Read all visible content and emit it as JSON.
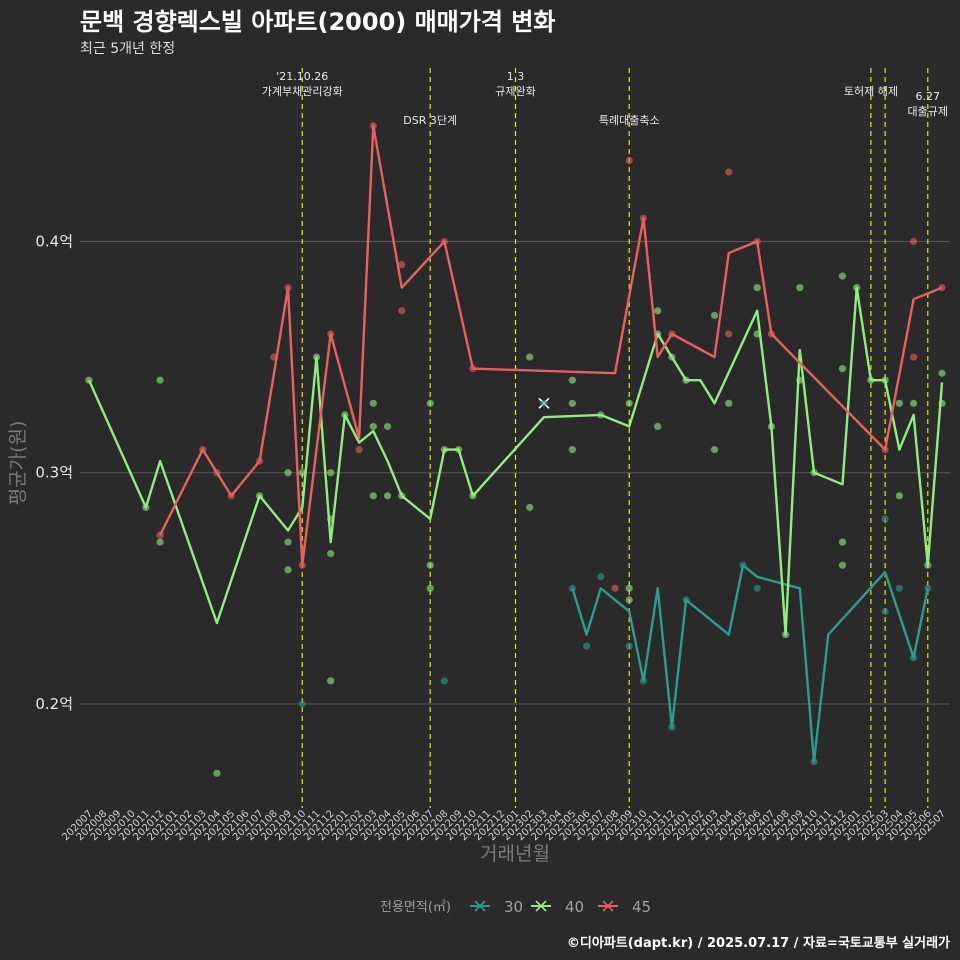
{
  "chart_data": {
    "type": "line",
    "title": "문백 경향렉스빌 아파트(2000) 매매가격 변화",
    "subtitle": "최근 5개년 한정",
    "xlabel": "거래년월",
    "ylabel": "평균가(원)",
    "caption": "©디아파트(dapt.kr) / 2025.07.17 / 자료=국토교통부 실거래가",
    "legend_title": "전용면적(㎡)",
    "legend_position": "bottom",
    "ylim": [
      0.155,
      0.475
    ],
    "y_ticks": [
      0.2,
      0.3,
      0.4
    ],
    "y_tick_labels": [
      "0.2억",
      "0.3억",
      "0.4억"
    ],
    "grid": true,
    "categories": [
      "202007",
      "202008",
      "202009",
      "202010",
      "202011",
      "202012",
      "202101",
      "202102",
      "202103",
      "202104",
      "202105",
      "202106",
      "202107",
      "202108",
      "202109",
      "202110",
      "202111",
      "202112",
      "202201",
      "202202",
      "202203",
      "202204",
      "202205",
      "202206",
      "202207",
      "202208",
      "202209",
      "202210",
      "202211",
      "202212",
      "202301",
      "202302",
      "202303",
      "202304",
      "202305",
      "202306",
      "202307",
      "202308",
      "202309",
      "202310",
      "202311",
      "202312",
      "202401",
      "202402",
      "202403",
      "202404",
      "202405",
      "202406",
      "202407",
      "202408",
      "202409",
      "202410",
      "202411",
      "202412",
      "202501",
      "202502",
      "202503",
      "202504",
      "202505",
      "202506",
      "202507"
    ],
    "events": [
      {
        "x": "202110",
        "label": [
          "'21.10.26",
          "가계부채관리강화"
        ],
        "level": 0
      },
      {
        "x": "202207",
        "label": [
          "DSR 3단계"
        ],
        "level": 1
      },
      {
        "x": "202301",
        "label": [
          "1.3",
          "규제완화"
        ],
        "level": 0
      },
      {
        "x": "202309",
        "label": [
          "특례대출축소"
        ],
        "level": 1
      },
      {
        "x": "202502",
        "label": [
          "토허제 해제"
        ],
        "level": 0
      },
      {
        "x": "202503",
        "label": [],
        "level": 0
      },
      {
        "x": "202506",
        "label": [
          "6.27",
          "대출규제"
        ],
        "level": 2
      }
    ],
    "series": [
      {
        "name": "30",
        "color": "#2a9d8f",
        "line": [
          [
            "202305",
            0.25
          ],
          [
            "202306",
            0.23
          ],
          [
            "202307",
            0.25
          ],
          [
            "202309",
            0.24
          ],
          [
            "202310",
            0.21
          ],
          [
            "202311",
            0.25
          ],
          [
            "202312",
            0.19
          ],
          [
            "202401",
            0.245
          ],
          [
            "202404",
            0.23
          ],
          [
            "202405",
            0.26
          ],
          [
            "202406",
            0.255
          ],
          [
            "202409",
            0.25
          ],
          [
            "202410",
            0.175
          ],
          [
            "202411",
            0.23
          ],
          [
            "202503",
            0.257
          ],
          [
            "202505",
            0.22
          ],
          [
            "202506",
            0.25
          ]
        ],
        "points": [
          [
            "202110",
            0.2
          ],
          [
            "202208",
            0.21
          ],
          [
            "202305",
            0.25
          ],
          [
            "202306",
            0.225
          ],
          [
            "202307",
            0.255
          ],
          [
            "202309",
            0.225
          ],
          [
            "202310",
            0.21
          ],
          [
            "202312",
            0.19
          ],
          [
            "202401",
            0.245
          ],
          [
            "202405",
            0.26
          ],
          [
            "202406",
            0.25
          ],
          [
            "202410",
            0.175
          ],
          [
            "202503",
            0.28
          ],
          [
            "202503",
            0.24
          ],
          [
            "202504",
            0.25
          ],
          [
            "202505",
            0.22
          ],
          [
            "202506",
            0.25
          ]
        ]
      },
      {
        "name": "40",
        "color": "#90ee7e",
        "line": [
          [
            "202007",
            0.34
          ],
          [
            "202011",
            0.285
          ],
          [
            "202012",
            0.305
          ],
          [
            "202104",
            0.235
          ],
          [
            "202107",
            0.29
          ],
          [
            "202109",
            0.275
          ],
          [
            "202110",
            0.285
          ],
          [
            "202111",
            0.35
          ],
          [
            "202112",
            0.27
          ],
          [
            "202201",
            0.325
          ],
          [
            "202202",
            0.313
          ],
          [
            "202203",
            0.318
          ],
          [
            "202204",
            0.305
          ],
          [
            "202205",
            0.29
          ],
          [
            "202207",
            0.28
          ],
          [
            "202208",
            0.31
          ],
          [
            "202209",
            0.31
          ],
          [
            "202210",
            0.29
          ],
          [
            "202303",
            0.324
          ],
          [
            "202307",
            0.325
          ],
          [
            "202309",
            0.32
          ],
          [
            "202310",
            0.34
          ],
          [
            "202311",
            0.36
          ],
          [
            "202312",
            0.35
          ],
          [
            "202401",
            0.34
          ],
          [
            "202402",
            0.34
          ],
          [
            "202403",
            0.33
          ],
          [
            "202406",
            0.37
          ],
          [
            "202407",
            0.32
          ],
          [
            "202408",
            0.23
          ],
          [
            "202409",
            0.353
          ],
          [
            "202410",
            0.3
          ],
          [
            "202412",
            0.295
          ],
          [
            "202501",
            0.38
          ],
          [
            "202502",
            0.34
          ],
          [
            "202503",
            0.34
          ],
          [
            "202504",
            0.31
          ],
          [
            "202505",
            0.325
          ],
          [
            "202506",
            0.26
          ],
          [
            "202507",
            0.339
          ]
        ],
        "points": [
          [
            "202007",
            0.34
          ],
          [
            "202011",
            0.285
          ],
          [
            "202012",
            0.34
          ],
          [
            "202012",
            0.27
          ],
          [
            "202104",
            0.17
          ],
          [
            "202107",
            0.29
          ],
          [
            "202109",
            0.3
          ],
          [
            "202109",
            0.27
          ],
          [
            "202109",
            0.258
          ],
          [
            "202110",
            0.3
          ],
          [
            "202111",
            0.35
          ],
          [
            "202112",
            0.3
          ],
          [
            "202112",
            0.28
          ],
          [
            "202112",
            0.265
          ],
          [
            "202112",
            0.21
          ],
          [
            "202201",
            0.325
          ],
          [
            "202203",
            0.33
          ],
          [
            "202203",
            0.32
          ],
          [
            "202203",
            0.29
          ],
          [
            "202204",
            0.32
          ],
          [
            "202204",
            0.29
          ],
          [
            "202205",
            0.29
          ],
          [
            "202207",
            0.33
          ],
          [
            "202207",
            0.26
          ],
          [
            "202207",
            0.25
          ],
          [
            "202208",
            0.31
          ],
          [
            "202209",
            0.31
          ],
          [
            "202210",
            0.29
          ],
          [
            "202302",
            0.35
          ],
          [
            "202302",
            0.285
          ],
          [
            "202305",
            0.34
          ],
          [
            "202305",
            0.33
          ],
          [
            "202305",
            0.31
          ],
          [
            "202307",
            0.325
          ],
          [
            "202309",
            0.33
          ],
          [
            "202309",
            0.25
          ],
          [
            "202309",
            0.245
          ],
          [
            "202311",
            0.36
          ],
          [
            "202311",
            0.37
          ],
          [
            "202311",
            0.32
          ],
          [
            "202312",
            0.35
          ],
          [
            "202401",
            0.34
          ],
          [
            "202403",
            0.31
          ],
          [
            "202403",
            0.368
          ],
          [
            "202404",
            0.33
          ],
          [
            "202406",
            0.38
          ],
          [
            "202406",
            0.36
          ],
          [
            "202407",
            0.32
          ],
          [
            "202408",
            0.23
          ],
          [
            "202409",
            0.38
          ],
          [
            "202409",
            0.34
          ],
          [
            "202410",
            0.3
          ],
          [
            "202412",
            0.385
          ],
          [
            "202412",
            0.345
          ],
          [
            "202412",
            0.27
          ],
          [
            "202412",
            0.26
          ],
          [
            "202501",
            0.38
          ],
          [
            "202502",
            0.34
          ],
          [
            "202503",
            0.34
          ],
          [
            "202504",
            0.33
          ],
          [
            "202504",
            0.29
          ],
          [
            "202505",
            0.33
          ],
          [
            "202506",
            0.26
          ],
          [
            "202507",
            0.343
          ],
          [
            "202507",
            0.33
          ]
        ]
      },
      {
        "name": "45",
        "color": "#e8615c",
        "line": [
          [
            "202012",
            0.273
          ],
          [
            "202103",
            0.31
          ],
          [
            "202105",
            0.29
          ],
          [
            "202107",
            0.305
          ],
          [
            "202109",
            0.38
          ],
          [
            "202110",
            0.26
          ],
          [
            "202112",
            0.36
          ],
          [
            "202202",
            0.315
          ],
          [
            "202203",
            0.45
          ],
          [
            "202205",
            0.38
          ],
          [
            "202208",
            0.4
          ],
          [
            "202210",
            0.345
          ],
          [
            "202308",
            0.343
          ],
          [
            "202310",
            0.41
          ],
          [
            "202311",
            0.35
          ],
          [
            "202312",
            0.36
          ],
          [
            "202403",
            0.35
          ],
          [
            "202404",
            0.395
          ],
          [
            "202406",
            0.4
          ],
          [
            "202407",
            0.36
          ],
          [
            "202503",
            0.31
          ],
          [
            "202505",
            0.375
          ],
          [
            "202507",
            0.38
          ]
        ],
        "points": [
          [
            "202012",
            0.273
          ],
          [
            "202103",
            0.31
          ],
          [
            "202104",
            0.3
          ],
          [
            "202105",
            0.29
          ],
          [
            "202107",
            0.305
          ],
          [
            "202108",
            0.35
          ],
          [
            "202109",
            0.38
          ],
          [
            "202110",
            0.26
          ],
          [
            "202112",
            0.36
          ],
          [
            "202202",
            0.31
          ],
          [
            "202203",
            0.45
          ],
          [
            "202205",
            0.39
          ],
          [
            "202205",
            0.37
          ],
          [
            "202208",
            0.4
          ],
          [
            "202210",
            0.345
          ],
          [
            "202308",
            0.25
          ],
          [
            "202309",
            0.435
          ],
          [
            "202310",
            0.41
          ],
          [
            "202312",
            0.36
          ],
          [
            "202404",
            0.43
          ],
          [
            "202404",
            0.36
          ],
          [
            "202406",
            0.4
          ],
          [
            "202407",
            0.36
          ],
          [
            "202503",
            0.31
          ],
          [
            "202505",
            0.4
          ],
          [
            "202505",
            0.35
          ],
          [
            "202507",
            0.38
          ]
        ]
      }
    ],
    "extra_markers": [
      {
        "series": "30",
        "x": "202303",
        "y": 0.33,
        "symbol": "x"
      }
    ]
  }
}
